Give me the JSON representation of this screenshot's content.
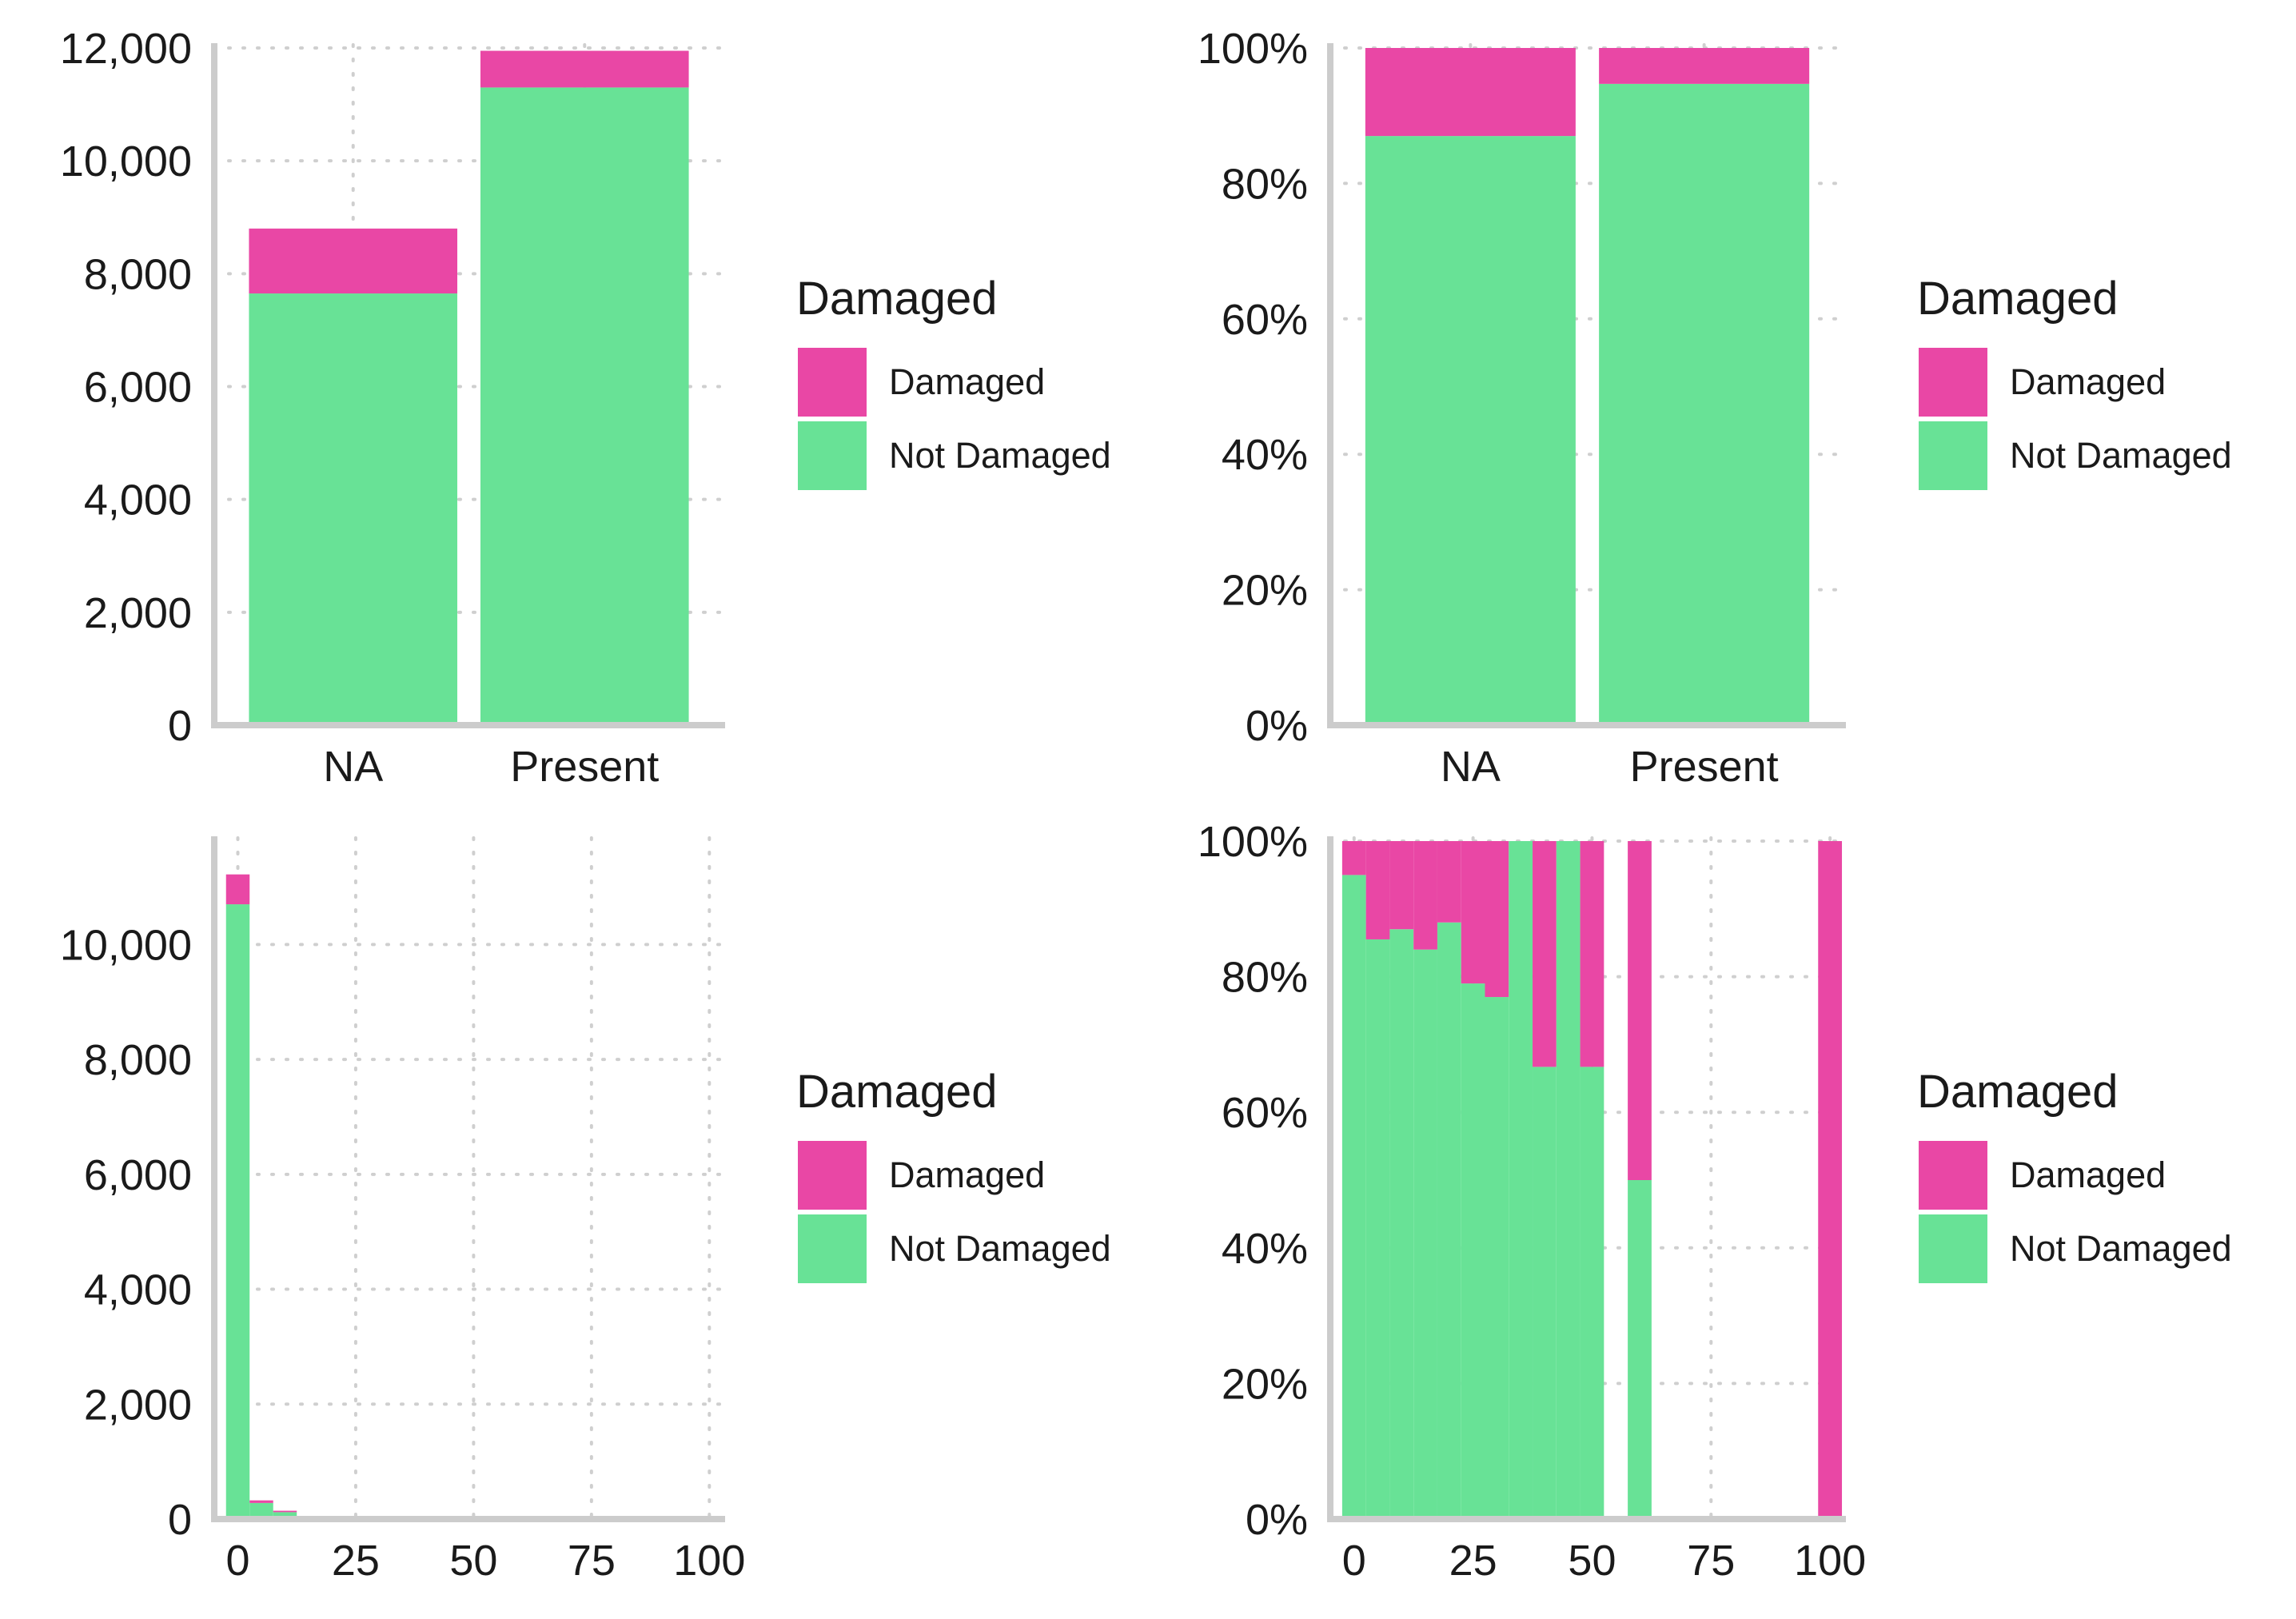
{
  "colors": {
    "damaged": "#e947a5",
    "not_damaged": "#68e296",
    "axis": "#cccccc",
    "grid": "#cfcfcf"
  },
  "legend": {
    "title": "Damaged",
    "items": [
      {
        "label": "Damaged",
        "color": "#e947a5"
      },
      {
        "label": "Not Damaged",
        "color": "#68e296"
      }
    ]
  },
  "chart_data": [
    {
      "id": "count-by-category",
      "type": "bar",
      "stacked": true,
      "categories": [
        "NA",
        "Present"
      ],
      "series": [
        {
          "name": "Not Damaged",
          "values": [
            7650,
            11300
          ]
        },
        {
          "name": "Damaged",
          "values": [
            1150,
            650
          ]
        }
      ],
      "ylim": [
        0,
        12000
      ],
      "yticks": [
        0,
        2000,
        4000,
        6000,
        8000,
        10000,
        12000
      ],
      "ytick_labels": [
        "0",
        "2,000",
        "4,000",
        "6,000",
        "8,000",
        "10,000",
        "12,000"
      ],
      "grid": true,
      "legend_position": "right"
    },
    {
      "id": "proportion-by-category",
      "type": "bar",
      "stacked": true,
      "normalized": true,
      "categories": [
        "NA",
        "Present"
      ],
      "series": [
        {
          "name": "Not Damaged",
          "values": [
            0.87,
            0.947
          ]
        },
        {
          "name": "Damaged",
          "values": [
            0.13,
            0.053
          ]
        }
      ],
      "ylim": [
        0,
        1
      ],
      "yticks": [
        0,
        0.2,
        0.4,
        0.6,
        0.8,
        1.0
      ],
      "ytick_labels": [
        "0%",
        "20%",
        "40%",
        "60%",
        "80%",
        "100%"
      ],
      "grid": true,
      "legend_position": "right"
    },
    {
      "id": "count-histogram",
      "type": "bar",
      "stacked": true,
      "histogram": true,
      "bin_width": 5,
      "x": [
        0,
        5,
        10,
        15
      ],
      "series": [
        {
          "name": "Not Damaged",
          "values": [
            10700,
            280,
            120,
            30
          ]
        },
        {
          "name": "Damaged",
          "values": [
            520,
            45,
            25,
            10
          ]
        }
      ],
      "xlim": [
        -5,
        103
      ],
      "xticks": [
        0,
        25,
        50,
        75,
        100
      ],
      "xtick_labels": [
        "0",
        "25",
        "50",
        "75",
        "100"
      ],
      "ylim": [
        0,
        11800
      ],
      "yticks": [
        0,
        2000,
        4000,
        6000,
        8000,
        10000
      ],
      "ytick_labels": [
        "0",
        "2,000",
        "4,000",
        "6,000",
        "8,000",
        "10,000"
      ],
      "grid": true,
      "legend_position": "right"
    },
    {
      "id": "proportion-histogram",
      "type": "bar",
      "stacked": true,
      "normalized": true,
      "histogram": true,
      "bin_width": 5,
      "x": [
        0,
        5,
        10,
        15,
        20,
        25,
        30,
        35,
        40,
        45,
        50,
        60,
        100
      ],
      "series": [
        {
          "name": "Not Damaged",
          "values": [
            0.95,
            0.855,
            0.87,
            0.84,
            0.88,
            0.79,
            0.77,
            1.0,
            0.667,
            1.0,
            0.667,
            0.5,
            0.0
          ]
        },
        {
          "name": "Damaged",
          "values": [
            0.05,
            0.145,
            0.13,
            0.16,
            0.12,
            0.21,
            0.23,
            0.0,
            0.333,
            0.0,
            0.333,
            0.5,
            1.0
          ]
        }
      ],
      "xlim": [
        -5,
        103
      ],
      "xticks": [
        0,
        25,
        50,
        75,
        100
      ],
      "xtick_labels": [
        "0",
        "25",
        "50",
        "75",
        "100"
      ],
      "ylim": [
        0,
        1
      ],
      "yticks": [
        0,
        0.2,
        0.4,
        0.6,
        0.8,
        1.0
      ],
      "ytick_labels": [
        "0%",
        "20%",
        "40%",
        "60%",
        "80%",
        "100%"
      ],
      "grid": true,
      "legend_position": "right"
    }
  ]
}
